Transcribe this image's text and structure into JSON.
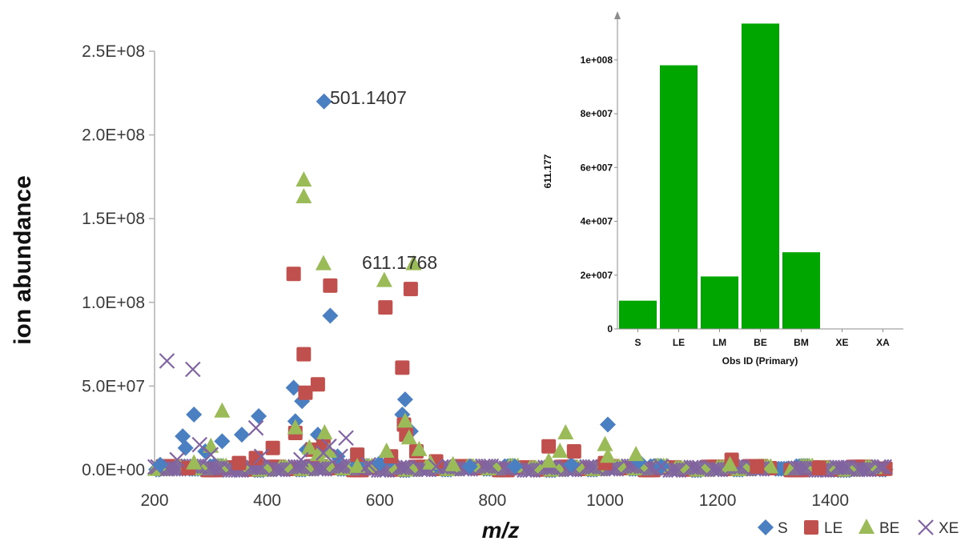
{
  "chart_data": [
    {
      "type": "scatter",
      "xlabel": "m/z",
      "ylabel": "ion abundance",
      "xlim": [
        200,
        1500
      ],
      "ylim": [
        0,
        250000000
      ],
      "x_ticks": [
        "200",
        "400",
        "600",
        "800",
        "1000",
        "1200",
        "1400"
      ],
      "y_ticks": [
        "0.0E+00",
        "5.0E+07",
        "1.0E+08",
        "1.5E+08",
        "2.0E+08",
        "2.5E+08"
      ],
      "legend_position": "bottom-right",
      "annotations": [
        {
          "text": "501.1407",
          "x": 501,
          "y": 220000000
        },
        {
          "text": "611.1768",
          "x": 611,
          "y": 123000000
        }
      ],
      "series": [
        {
          "name": "S",
          "marker": "diamond",
          "color": "#4a7fc1",
          "points": [
            [
              210,
              3000000
            ],
            [
              250,
              20000000
            ],
            [
              255,
              13000000
            ],
            [
              270,
              33000000
            ],
            [
              290,
              11000000
            ],
            [
              320,
              17000000
            ],
            [
              355,
              21000000
            ],
            [
              385,
              32000000
            ],
            [
              447,
              49000000
            ],
            [
              450,
              29000000
            ],
            [
              462,
              41000000
            ],
            [
              470,
              12000000
            ],
            [
              490,
              21000000
            ],
            [
              501,
              220000000
            ],
            [
              512,
              92000000
            ],
            [
              525,
              8000000
            ],
            [
              560,
              3000000
            ],
            [
              600,
              4000000
            ],
            [
              620,
              6000000
            ],
            [
              640,
              33000000
            ],
            [
              645,
              42000000
            ],
            [
              655,
              23000000
            ],
            [
              700,
              3000000
            ],
            [
              760,
              2000000
            ],
            [
              840,
              2000000
            ],
            [
              940,
              3000000
            ],
            [
              1005,
              27000000
            ],
            [
              1060,
              5000000
            ],
            [
              1100,
              2000000
            ]
          ]
        },
        {
          "name": "LE",
          "marker": "square",
          "color": "#c0504d",
          "points": [
            [
              260,
              1000000
            ],
            [
              350,
              4000000
            ],
            [
              380,
              7000000
            ],
            [
              410,
              13000000
            ],
            [
              447,
              117000000
            ],
            [
              450,
              22000000
            ],
            [
              465,
              69000000
            ],
            [
              468,
              46000000
            ],
            [
              480,
              12000000
            ],
            [
              490,
              51000000
            ],
            [
              500,
              15000000
            ],
            [
              512,
              110000000
            ],
            [
              560,
              9000000
            ],
            [
              610,
              97000000
            ],
            [
              620,
              8000000
            ],
            [
              640,
              61000000
            ],
            [
              643,
              27000000
            ],
            [
              647,
              21000000
            ],
            [
              655,
              108000000
            ],
            [
              665,
              11000000
            ],
            [
              700,
              5000000
            ],
            [
              900,
              14000000
            ],
            [
              945,
              11000000
            ],
            [
              1000,
              4000000
            ],
            [
              1225,
              6000000
            ],
            [
              1270,
              2000000
            ],
            [
              1380,
              1000000
            ]
          ]
        },
        {
          "name": "BE",
          "marker": "triangle",
          "color": "#9bbb59",
          "points": [
            [
              270,
              4000000
            ],
            [
              300,
              14000000
            ],
            [
              320,
              35000000
            ],
            [
              450,
              25000000
            ],
            [
              465,
              173000000
            ],
            [
              465,
              163000000
            ],
            [
              475,
              13000000
            ],
            [
              490,
              9000000
            ],
            [
              500,
              123000000
            ],
            [
              502,
              22000000
            ],
            [
              510,
              11000000
            ],
            [
              560,
              2000000
            ],
            [
              608,
              113000000
            ],
            [
              612,
              11000000
            ],
            [
              645,
              29000000
            ],
            [
              652,
              19000000
            ],
            [
              660,
              123000000
            ],
            [
              670,
              12000000
            ],
            [
              690,
              4000000
            ],
            [
              730,
              3000000
            ],
            [
              900,
              5000000
            ],
            [
              920,
              11000000
            ],
            [
              930,
              22000000
            ],
            [
              1000,
              15000000
            ],
            [
              1005,
              8000000
            ],
            [
              1055,
              9000000
            ],
            [
              1222,
              3000000
            ]
          ]
        },
        {
          "name": "XE",
          "marker": "cross",
          "color": "#8064a2",
          "points": [
            [
              222,
              65000000
            ],
            [
              240,
              6000000
            ],
            [
              268,
              60000000
            ],
            [
              280,
              15000000
            ],
            [
              300,
              9000000
            ],
            [
              380,
              25000000
            ],
            [
              390,
              8000000
            ],
            [
              460,
              6000000
            ],
            [
              500,
              10000000
            ],
            [
              510,
              14000000
            ],
            [
              530,
              8000000
            ],
            [
              540,
              19000000
            ],
            [
              580,
              3000000
            ],
            [
              700,
              2000000
            ],
            [
              1100,
              2000000
            ]
          ]
        }
      ]
    },
    {
      "type": "bar",
      "xlabel": "Obs ID (Primary)",
      "ylabel": "611.177",
      "categories": [
        "S",
        "LE",
        "LM",
        "BE",
        "BM",
        "XE",
        "XA"
      ],
      "values": [
        10500000,
        98000000,
        19500000,
        113500000,
        28500000,
        0,
        0
      ],
      "ylim": [
        0,
        117500000
      ],
      "y_ticks": [
        {
          "label": "0",
          "value": 0
        },
        {
          "label": "2e+007",
          "value": 20000000
        },
        {
          "label": "4e+007",
          "value": 40000000
        },
        {
          "label": "6e+007",
          "value": 60000000
        },
        {
          "label": "8e+007",
          "value": 80000000
        },
        {
          "label": "1e+008",
          "value": 100000000
        }
      ],
      "bar_color": "#00a600"
    }
  ]
}
